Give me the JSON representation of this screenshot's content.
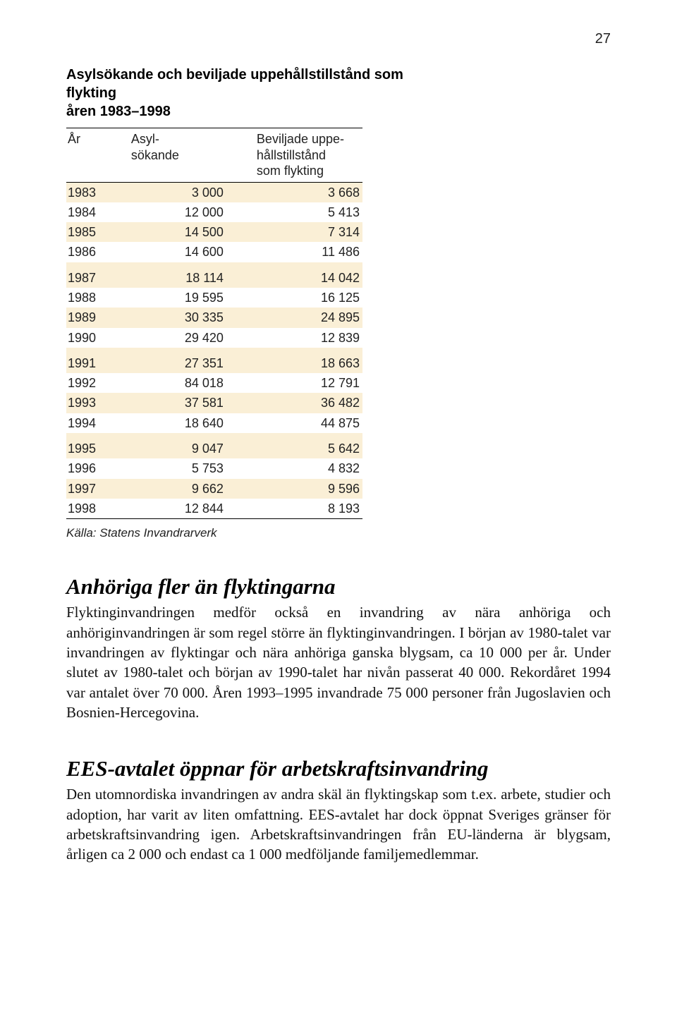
{
  "page_number": "27",
  "table": {
    "title_line1": "Asylsökande och beviljade uppehållstillstånd som flykting",
    "title_line2": "åren 1983–1998",
    "columns": {
      "year": "År",
      "asyl_line1": "Asyl-",
      "asyl_line2": "sökande",
      "bev_line1": "Beviljade uppe-",
      "bev_line2": "hållstillstånd",
      "bev_line3": "som flykting"
    },
    "rows": [
      {
        "year": "1983",
        "asyl": "3 000",
        "bev": "3 668",
        "shade": true,
        "group_top": false
      },
      {
        "year": "1984",
        "asyl": "12 000",
        "bev": "5 413",
        "shade": false,
        "group_top": false
      },
      {
        "year": "1985",
        "asyl": "14 500",
        "bev": "7 314",
        "shade": true,
        "group_top": false
      },
      {
        "year": "1986",
        "asyl": "14 600",
        "bev": "11 486",
        "shade": false,
        "group_top": false
      },
      {
        "year": "1987",
        "asyl": "18 114",
        "bev": "14 042",
        "shade": true,
        "group_top": true
      },
      {
        "year": "1988",
        "asyl": "19 595",
        "bev": "16 125",
        "shade": false,
        "group_top": false
      },
      {
        "year": "1989",
        "asyl": "30 335",
        "bev": "24 895",
        "shade": true,
        "group_top": false
      },
      {
        "year": "1990",
        "asyl": "29 420",
        "bev": "12 839",
        "shade": false,
        "group_top": false
      },
      {
        "year": "1991",
        "asyl": "27 351",
        "bev": "18 663",
        "shade": true,
        "group_top": true
      },
      {
        "year": "1992",
        "asyl": "84 018",
        "bev": "12 791",
        "shade": false,
        "group_top": false
      },
      {
        "year": "1993",
        "asyl": "37 581",
        "bev": "36 482",
        "shade": true,
        "group_top": false
      },
      {
        "year": "1994",
        "asyl": "18 640",
        "bev": "44 875",
        "shade": false,
        "group_top": false
      },
      {
        "year": "1995",
        "asyl": "9 047",
        "bev": "5 642",
        "shade": true,
        "group_top": true
      },
      {
        "year": "1996",
        "asyl": "5 753",
        "bev": "4 832",
        "shade": false,
        "group_top": false
      },
      {
        "year": "1997",
        "asyl": "9 662",
        "bev": "9 596",
        "shade": true,
        "group_top": false
      },
      {
        "year": "1998",
        "asyl": "12 844",
        "bev": "8 193",
        "shade": false,
        "group_top": false
      }
    ],
    "source": "Källa: Statens Invandrarverk",
    "stripe_color": "#faefd6",
    "border_color": "#000000"
  },
  "sections": [
    {
      "heading": "Anhöriga fler än flyktingarna",
      "body": "Flyktinginvandringen medför också en invandring av nära anhöriga och anhöriginvandringen är som regel större än flyktinginvandringen. I början av 1980-talet var invandringen av flyktingar och nära anhöriga ganska blygsam, ca 10 000 per år. Under slutet av 1980-talet och början av 1990-talet har nivån passerat 40 000. Rekordåret 1994 var antalet över 70 000. Åren 1993–1995 invandrade 75 000 personer från Jugoslavien och Bosnien-Hercegovina."
    },
    {
      "heading": "EES-avtalet öppnar för arbetskraftsinvandring",
      "body": "Den utomnordiska invandringen av andra skäl än flyktingskap som t.ex. arbete, studier och adoption, har varit av liten omfattning. EES-avtalet har dock öppnat Sveriges gränser för arbetskraftsinvandring igen. Arbetskraftsinvandringen från EU-länderna är blygsam, årligen ca 2 000 och endast ca 1 000 medföljande familjemedlemmar."
    }
  ]
}
